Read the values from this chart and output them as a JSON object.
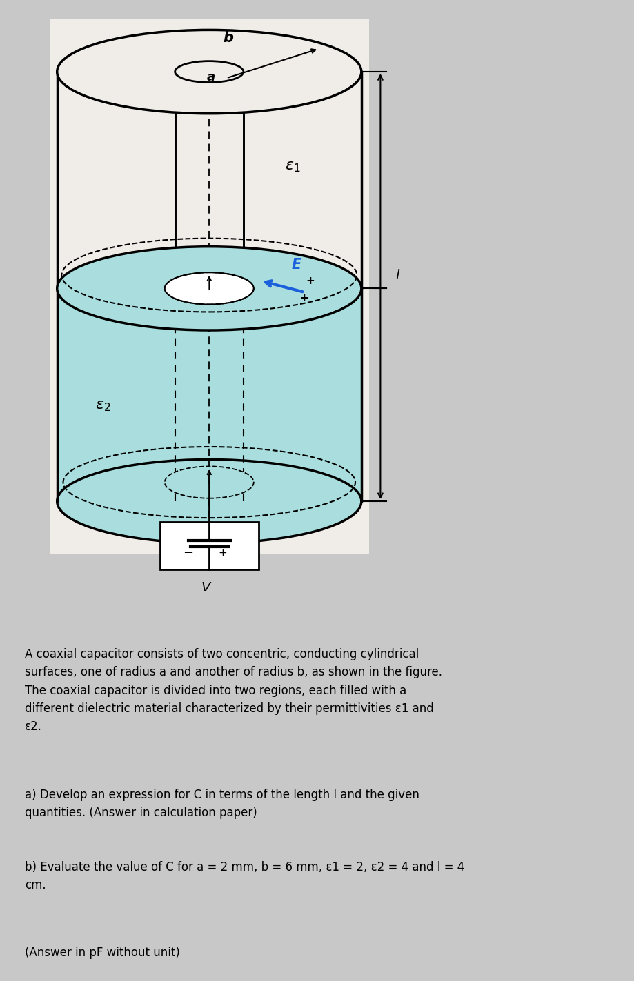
{
  "fig_bg_color": "#c8c8c8",
  "diagram_bg": "#f0ece8",
  "cylinder_fill_top": "#f0ece8",
  "cylinder_fill_cyan": "#aadede",
  "outline_color": "#000000",
  "text_color": "#000000",
  "arrow_color": "#1a5fdb",
  "title_text": "A coaxial capacitor consists of two concentric, conducting cylindrical\nsurfaces, one of radius a and another of radius b, as shown in the figure.\nThe coaxial capacitor is divided into two regions, each filled with a\ndifferent dielectric material characterized by their permittivities ε1 and\nε2.",
  "part_a": "a) Develop an expression for C in terms of the length l and the given\nquantities. (Answer in calculation paper)",
  "part_b": "b) Evaluate the value of C for a = 2 mm, b = 6 mm, ε1 = 2, ε2 = 4 and l = 4\ncm.",
  "part_c": "(Answer in pF without unit)"
}
